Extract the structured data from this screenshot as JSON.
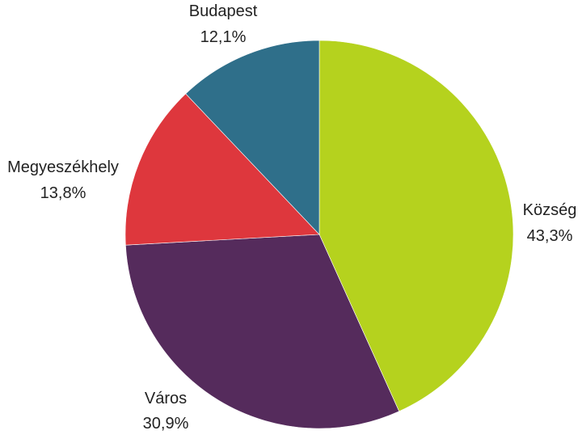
{
  "chart_data": {
    "type": "pie",
    "title": "",
    "slices": [
      {
        "label": "Község",
        "value": 43.3,
        "value_label": "43,3%",
        "color": "#b5d21e"
      },
      {
        "label": "Város",
        "value": 30.9,
        "value_label": "30,9%",
        "color": "#552b5c"
      },
      {
        "label": "Megyeszékhely",
        "value": 13.8,
        "value_label": "13,8%",
        "color": "#de373d"
      },
      {
        "label": "Budapest",
        "value": 12.1,
        "value_label": "12,1%",
        "color": "#2f6f8a"
      }
    ],
    "start_angle": "12 o'clock",
    "direction": "clockwise",
    "legend": "none",
    "data_labels": "outside"
  }
}
